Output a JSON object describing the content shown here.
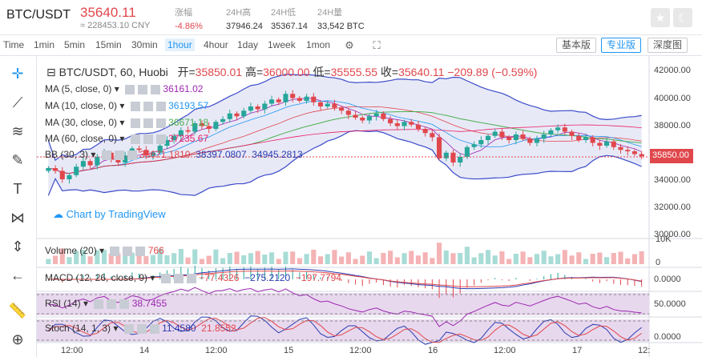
{
  "header": {
    "pair": "BTC/USDT",
    "price": "35640.11",
    "cny": "≈ 228453.10 CNY",
    "stats": [
      {
        "label": "涨幅",
        "value": "-4.86%",
        "red": true
      },
      {
        "label": "24H高",
        "value": "37946.24"
      },
      {
        "label": "24H低",
        "value": "35367.14"
      },
      {
        "label": "24H量",
        "value": "33,542 BTC"
      }
    ],
    "star_icon": "star-icon",
    "theme_icon": "moon-icon"
  },
  "toolbar": {
    "time_label": "Time",
    "intervals": [
      "1min",
      "5min",
      "15min",
      "30min",
      "1hour",
      "4hour",
      "1day",
      "1week",
      "1mon"
    ],
    "active_interval": "1hour",
    "views": [
      "基本版",
      "专业版",
      "深度图"
    ],
    "active_view": "专业版"
  },
  "left_tools": [
    "crosshair-icon",
    "trendline-icon",
    "fib-icon",
    "brush-icon",
    "text-icon",
    "pattern-icon",
    "measure-icon",
    "back-arrow-icon",
    "ruler-icon",
    "zoom-icon"
  ],
  "main": {
    "symbol": "BTC/USDT, 60, Huobi",
    "open_label": "开=",
    "open": "35850.01",
    "high_label": "高=",
    "high": "36000.00",
    "low_label": "低=",
    "low": "35555.55",
    "close_label": "收=",
    "close": "35640.11",
    "change": "−209.89 (−0.59%)",
    "watermark": "Chart by TradingView",
    "indicators": [
      {
        "name": "MA (5, close, 0)",
        "value": "36161.02",
        "color": "#9c27b0"
      },
      {
        "name": "MA (10, close, 0)",
        "value": "36193.57",
        "color": "#2196f3"
      },
      {
        "name": "MA (30, close, 0)",
        "value": "36671.18",
        "color": "#4caf50"
      },
      {
        "name": "MA (60, close, 0)",
        "value": "37235.67",
        "color": "#e91e63"
      },
      {
        "name": "BB (30, 3)",
        "value": "36671.1810",
        "value2": "38397.0807",
        "value3": "34945.2813",
        "color": "#e0474c"
      }
    ],
    "price_axis": [
      "42000.00",
      "40000.00",
      "38000.00",
      "36000.00",
      "34000.00",
      "32000.00",
      "30000.00"
    ],
    "current_price_tag": "35850.00"
  },
  "volume": {
    "name": "Volume (20)",
    "value": "766",
    "axis": [
      "10K",
      "0"
    ]
  },
  "macd": {
    "name": "MACD (12, 26, close, 9)",
    "v1": "−77.4326",
    "v2": "−275.2120",
    "v3": "−197.7794",
    "axis": "0.0000"
  },
  "rsi": {
    "name": "RSI (14)",
    "value": "38.7455",
    "axis": "50.0000"
  },
  "stoch": {
    "name": "Stoch (14, 1, 3)",
    "v1": "11.4580",
    "v2": "21.8552",
    "axis": "0.0000"
  },
  "time_axis": [
    "12:00",
    "14",
    "12:00",
    "15",
    "12:00",
    "16",
    "12:00",
    "17",
    "12:"
  ],
  "chart_data": {
    "type": "candlestick",
    "title": "BTC/USDT, 60, Huobi",
    "ylim": [
      29500,
      42500
    ],
    "closes": [
      34800,
      34600,
      34000,
      34300,
      34900,
      35300,
      35000,
      35600,
      35900,
      35400,
      35200,
      35700,
      36200,
      36100,
      35700,
      35900,
      36400,
      36800,
      37100,
      37500,
      37400,
      38000,
      37800,
      37600,
      38100,
      38300,
      38700,
      38500,
      38900,
      39200,
      39000,
      39400,
      39700,
      39500,
      40100,
      39800,
      39600,
      39900,
      39500,
      39200,
      39400,
      39100,
      38900,
      38600,
      38400,
      38200,
      38500,
      38700,
      38300,
      38000,
      37800,
      38100,
      37900,
      37600,
      37300,
      37000,
      35500,
      35900,
      35200,
      35600,
      36300,
      36500,
      36800,
      37100,
      37400,
      37000,
      36800,
      37200,
      36900,
      36600,
      36900,
      37200,
      37500,
      37700,
      37400,
      37100,
      36800,
      37000,
      36600,
      36400,
      36700,
      36300,
      36100,
      36000,
      35800,
      35640
    ]
  }
}
